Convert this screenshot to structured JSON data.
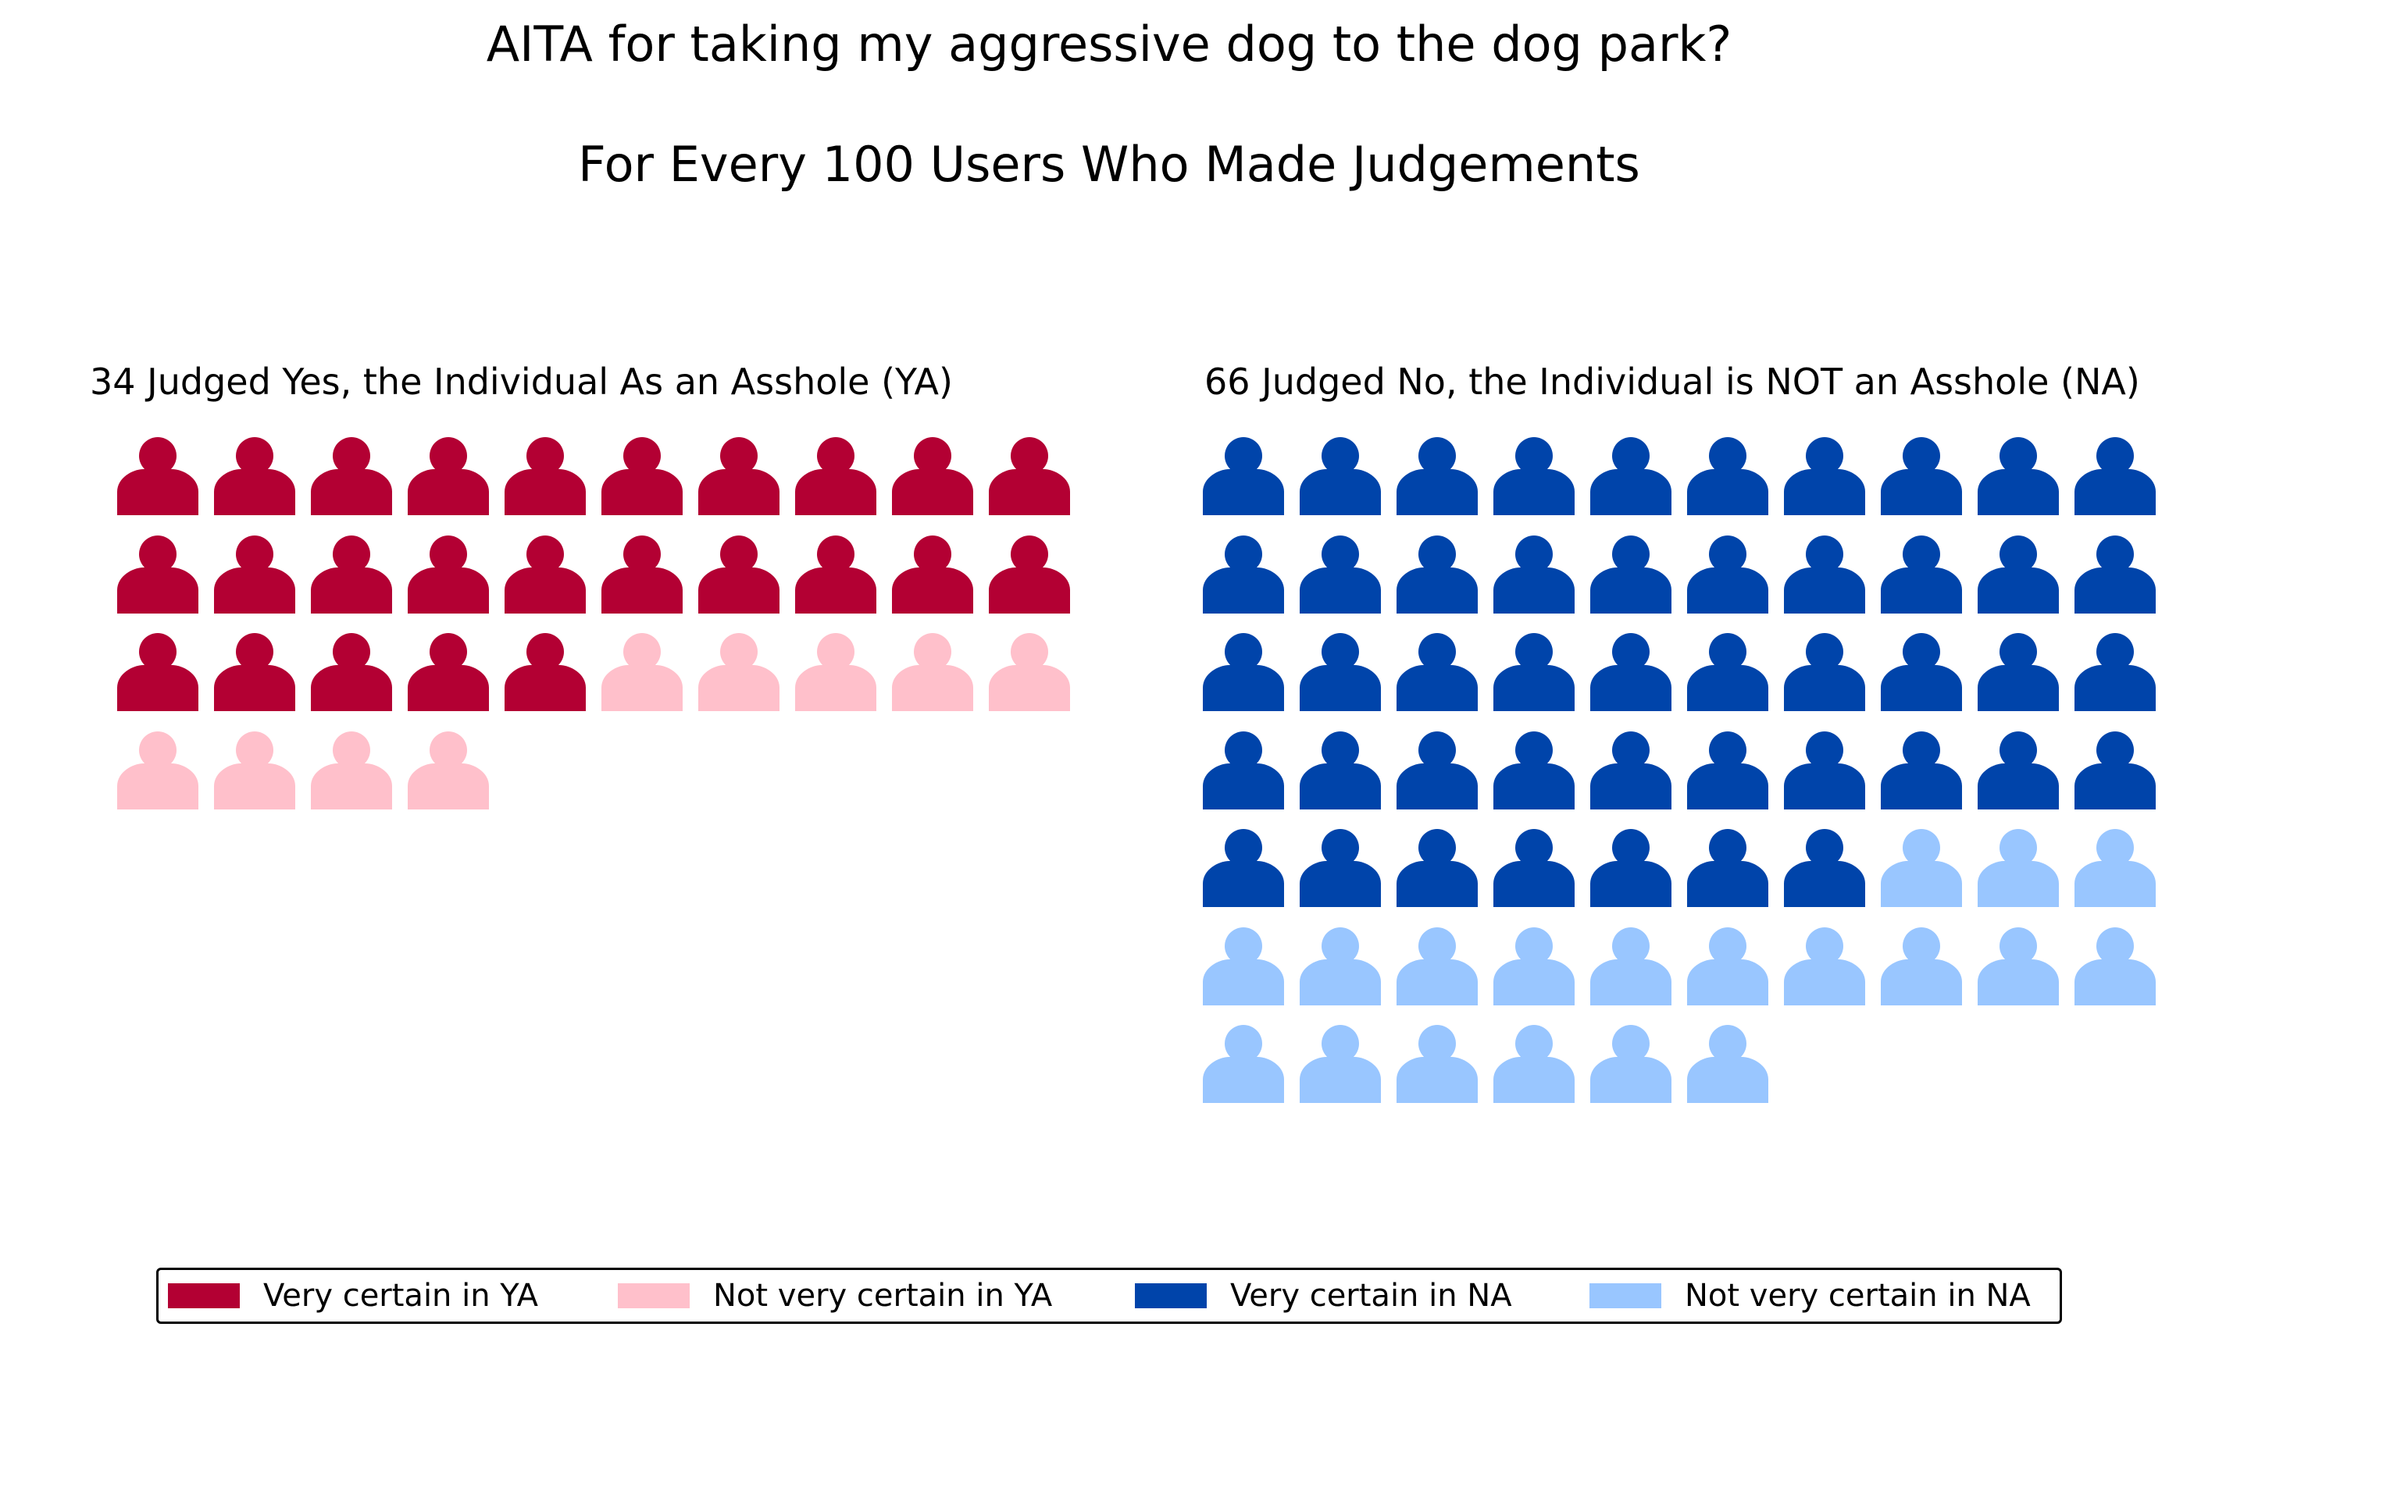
{
  "title": "AITA for taking my aggressive dog to the dog park?",
  "subtitle": "For Every 100 Users Who Made Judgements",
  "colors": {
    "very_certain_ya": "#b30033",
    "not_very_certain_ya": "#ffc0cb",
    "very_certain_na": "#0044aa",
    "not_very_certain_na": "#99c6ff"
  },
  "icon": "person-icon",
  "legend": {
    "placement": "bottom",
    "items": [
      {
        "label": "Very certain in YA",
        "color": "#b30033"
      },
      {
        "label": "Not very certain in YA",
        "color": "#ffc0cb"
      },
      {
        "label": "Very certain in NA",
        "color": "#0044aa"
      },
      {
        "label": "Not very certain in NA",
        "color": "#99c6ff"
      }
    ]
  },
  "chart_data": [
    {
      "type": "waffle",
      "title": "34 Judged Yes, the Individual As an Asshole (YA)",
      "columns": 10,
      "total": 34,
      "series": [
        {
          "name": "Very certain in YA",
          "value": 25,
          "color": "#b30033"
        },
        {
          "name": "Not very certain in YA",
          "value": 9,
          "color": "#ffc0cb"
        }
      ]
    },
    {
      "type": "waffle",
      "title": "66 Judged No, the Individual is NOT an Asshole (NA)",
      "columns": 10,
      "total": 66,
      "series": [
        {
          "name": "Very certain in NA",
          "value": 47,
          "color": "#0044aa"
        },
        {
          "name": "Not very certain in NA",
          "value": 19,
          "color": "#99c6ff"
        }
      ]
    }
  ]
}
